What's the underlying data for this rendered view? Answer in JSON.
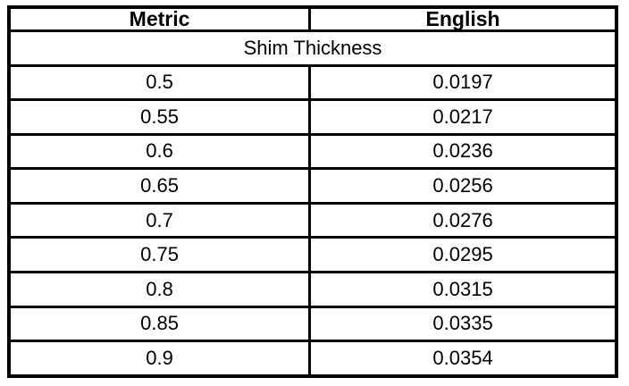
{
  "table": {
    "columns": [
      {
        "label": "Metric"
      },
      {
        "label": "English"
      }
    ],
    "section_header": "Shim Thickness",
    "rows": [
      {
        "metric": "0.5",
        "english": "0.0197"
      },
      {
        "metric": "0.55",
        "english": "0.0217"
      },
      {
        "metric": "0.6",
        "english": "0.0236"
      },
      {
        "metric": "0.65",
        "english": "0.0256"
      },
      {
        "metric": "0.7",
        "english": "0.0276"
      },
      {
        "metric": "0.75",
        "english": "0.0295"
      },
      {
        "metric": "0.8",
        "english": "0.0315"
      },
      {
        "metric": "0.85",
        "english": "0.0335"
      },
      {
        "metric": "0.9",
        "english": "0.0354"
      }
    ],
    "colors": {
      "border": "#000000",
      "text": "#000000",
      "background": "#ffffff"
    }
  }
}
